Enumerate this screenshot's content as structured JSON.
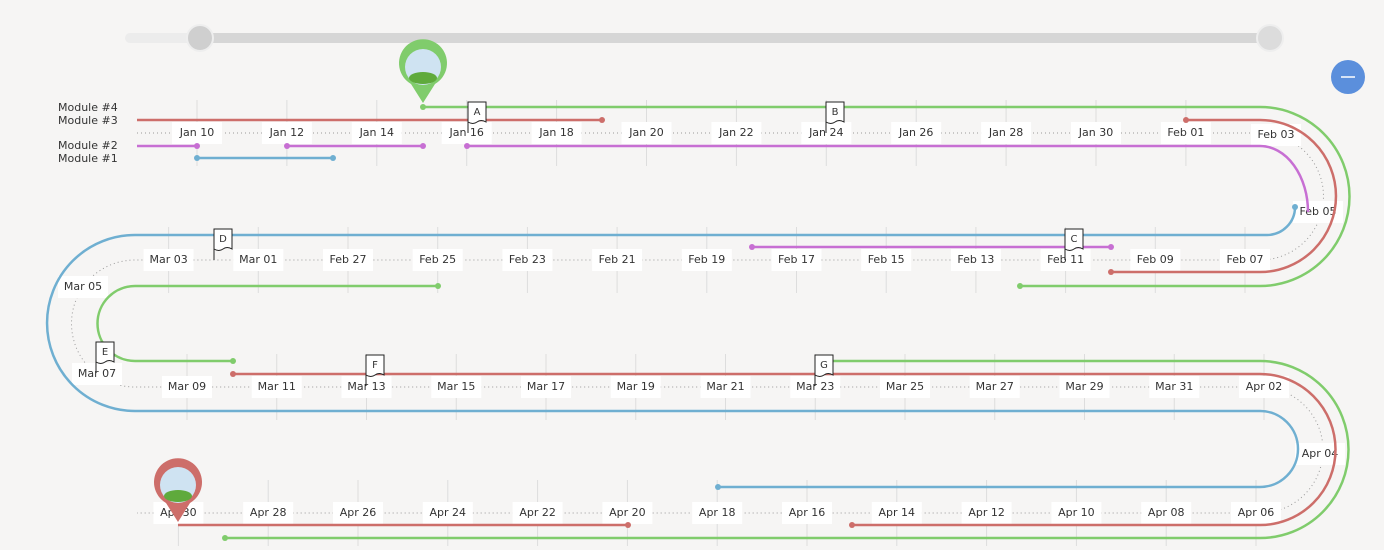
{
  "modules": [
    "Module #4",
    "Module #3",
    "Module #2",
    "Module #1"
  ],
  "markers": [
    "A",
    "B",
    "C",
    "D",
    "E",
    "F",
    "G"
  ],
  "timeline": {
    "dates": [
      "Jan 10",
      "Jan 12",
      "Jan 14",
      "Jan 16",
      "Jan 18",
      "Jan 20",
      "Jan 22",
      "Jan 24",
      "Jan 26",
      "Jan 28",
      "Jan 30",
      "Feb 01",
      "Feb 03",
      "Feb 05",
      "Feb 07",
      "Feb 09",
      "Feb 11",
      "Feb 13",
      "Feb 15",
      "Feb 17",
      "Feb 19",
      "Feb 21",
      "Feb 23",
      "Feb 25",
      "Feb 27",
      "Mar 01",
      "Mar 03",
      "Mar 05",
      "Mar 07",
      "Mar 09",
      "Mar 11",
      "Mar 13",
      "Mar 15",
      "Mar 17",
      "Mar 19",
      "Mar 21",
      "Mar 23",
      "Mar 25",
      "Mar 27",
      "Mar 29",
      "Mar 31",
      "Apr 02",
      "Apr 04",
      "Apr 06",
      "Apr 08",
      "Apr 10",
      "Apr 12",
      "Apr 14",
      "Apr 16",
      "Apr 18",
      "Apr 20",
      "Apr 22",
      "Apr 24",
      "Apr 26",
      "Apr 28",
      "Apr 30"
    ]
  }
}
